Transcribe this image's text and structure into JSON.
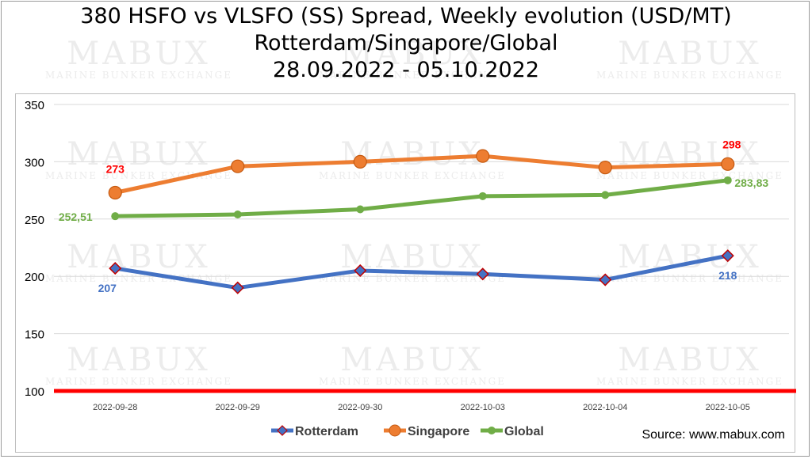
{
  "title_lines": [
    "380 HSFO vs VLSFO (SS) Spread, Weekly evolution (USD/MT)",
    "Rotterdam/Singapore/Global",
    "28.09.2022 - 05.10.2022"
  ],
  "source": "Source: www.mabux.com",
  "watermark": {
    "brand": "MABUX",
    "tagline": "MARINE BUNKER EXCHANGE"
  },
  "chart_data": {
    "type": "line",
    "categories": [
      "2022-09-28",
      "2022-09-29",
      "2022-09-30",
      "2022-10-03",
      "2022-10-04",
      "2022-10-05"
    ],
    "ylim": [
      100,
      350
    ],
    "yticks": [
      "350",
      "300",
      "250",
      "200",
      "150",
      "100"
    ],
    "grid": true,
    "legend": "bottom",
    "series": [
      {
        "name": "Rotterdam",
        "values": [
          207,
          190,
          205,
          202,
          197,
          218
        ],
        "color": "#4472c4",
        "marker": "diamond",
        "labels": [
          "207",
          "",
          "",
          "",
          "",
          "218"
        ]
      },
      {
        "name": "Singapore",
        "values": [
          273,
          296,
          300,
          305,
          295,
          298
        ],
        "color": "#ed7d31",
        "marker": "circle",
        "labels": [
          "273",
          "",
          "",
          "",
          "",
          "298"
        ]
      },
      {
        "name": "Global",
        "values": [
          252.51,
          254,
          258.5,
          270,
          271,
          283.83
        ],
        "color": "#70ad47",
        "marker": "dot",
        "labels": [
          "252,51",
          "",
          "",
          "",
          "",
          "283,83"
        ]
      }
    ],
    "reference_line": {
      "value": 100,
      "color": "#ff0000"
    },
    "label_colors": {
      "Rotterdam": "#4472c4",
      "Singapore": "#ff0000",
      "Global": "#70ad47"
    }
  }
}
